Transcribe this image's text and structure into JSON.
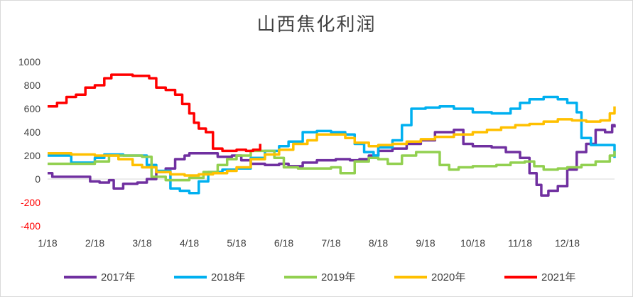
{
  "chart_data": {
    "type": "line",
    "title": "山西焦化利润",
    "xlabel": "",
    "ylabel": "",
    "ylim": [
      -400,
      1000
    ],
    "yticks": [
      -400,
      -200,
      0,
      200,
      400,
      600,
      800,
      1000
    ],
    "xlim": [
      0,
      12
    ],
    "x_tick_labels": [
      "1/18",
      "2/18",
      "3/18",
      "4/18",
      "5/18",
      "6/18",
      "7/18",
      "8/18",
      "9/18",
      "10/18",
      "11/18",
      "12/18"
    ],
    "grid": false,
    "legend_position": "bottom",
    "series": [
      {
        "name": "2017年",
        "color": "#7030a0",
        "points": [
          [
            0,
            50
          ],
          [
            0.1,
            20
          ],
          [
            0.4,
            20
          ],
          [
            0.7,
            20
          ],
          [
            0.9,
            -20
          ],
          [
            1.1,
            -30
          ],
          [
            1.3,
            -10
          ],
          [
            1.4,
            -80
          ],
          [
            1.6,
            -40
          ],
          [
            1.9,
            -30
          ],
          [
            2.1,
            0
          ],
          [
            2.3,
            60
          ],
          [
            2.5,
            90
          ],
          [
            2.7,
            170
          ],
          [
            2.9,
            200
          ],
          [
            3.0,
            220
          ],
          [
            3.4,
            220
          ],
          [
            3.6,
            190
          ],
          [
            3.9,
            200
          ],
          [
            4.1,
            160
          ],
          [
            4.3,
            130
          ],
          [
            4.6,
            120
          ],
          [
            4.9,
            130
          ],
          [
            5.1,
            110
          ],
          [
            5.4,
            140
          ],
          [
            5.7,
            160
          ],
          [
            6.1,
            170
          ],
          [
            6.4,
            160
          ],
          [
            6.6,
            170
          ],
          [
            6.8,
            200
          ],
          [
            7.0,
            240
          ],
          [
            7.3,
            260
          ],
          [
            7.6,
            300
          ],
          [
            7.9,
            330
          ],
          [
            8.2,
            400
          ],
          [
            8.6,
            420
          ],
          [
            8.8,
            300
          ],
          [
            9.0,
            280
          ],
          [
            9.4,
            270
          ],
          [
            9.7,
            230
          ],
          [
            10.0,
            180
          ],
          [
            10.2,
            50
          ],
          [
            10.35,
            -50
          ],
          [
            10.45,
            -140
          ],
          [
            10.6,
            -100
          ],
          [
            10.8,
            -60
          ],
          [
            11.0,
            80
          ],
          [
            11.2,
            230
          ],
          [
            11.4,
            300
          ],
          [
            11.6,
            420
          ],
          [
            11.8,
            400
          ],
          [
            11.95,
            460
          ],
          [
            12.0,
            440
          ]
        ]
      },
      {
        "name": "2018年",
        "color": "#00b0f0",
        "points": [
          [
            0,
            200
          ],
          [
            0.3,
            200
          ],
          [
            0.5,
            140
          ],
          [
            0.8,
            140
          ],
          [
            1.0,
            180
          ],
          [
            1.2,
            210
          ],
          [
            1.6,
            200
          ],
          [
            2.0,
            200
          ],
          [
            2.1,
            120
          ],
          [
            2.3,
            70
          ],
          [
            2.6,
            -80
          ],
          [
            2.8,
            -100
          ],
          [
            3.0,
            -120
          ],
          [
            3.2,
            -20
          ],
          [
            3.4,
            60
          ],
          [
            3.7,
            80
          ],
          [
            4.0,
            90
          ],
          [
            4.3,
            180
          ],
          [
            4.6,
            240
          ],
          [
            4.9,
            280
          ],
          [
            5.1,
            320
          ],
          [
            5.4,
            400
          ],
          [
            5.7,
            410
          ],
          [
            6.0,
            400
          ],
          [
            6.3,
            380
          ],
          [
            6.5,
            300
          ],
          [
            6.7,
            230
          ],
          [
            6.9,
            200
          ],
          [
            7.0,
            270
          ],
          [
            7.3,
            330
          ],
          [
            7.5,
            460
          ],
          [
            7.7,
            600
          ],
          [
            8.0,
            610
          ],
          [
            8.3,
            620
          ],
          [
            8.6,
            600
          ],
          [
            9.0,
            570
          ],
          [
            9.4,
            560
          ],
          [
            9.8,
            600
          ],
          [
            10.0,
            650
          ],
          [
            10.2,
            680
          ],
          [
            10.5,
            700
          ],
          [
            10.8,
            680
          ],
          [
            11.0,
            650
          ],
          [
            11.2,
            570
          ],
          [
            11.3,
            350
          ],
          [
            11.5,
            290
          ],
          [
            11.8,
            290
          ],
          [
            12.0,
            180
          ]
        ]
      },
      {
        "name": "2019年",
        "color": "#92d050",
        "points": [
          [
            0,
            130
          ],
          [
            0.5,
            130
          ],
          [
            1.0,
            150
          ],
          [
            1.3,
            200
          ],
          [
            1.6,
            200
          ],
          [
            2.0,
            190
          ],
          [
            2.2,
            20
          ],
          [
            2.5,
            -10
          ],
          [
            2.7,
            -10
          ],
          [
            3.0,
            10
          ],
          [
            3.3,
            60
          ],
          [
            3.6,
            120
          ],
          [
            3.8,
            170
          ],
          [
            4.0,
            200
          ],
          [
            4.3,
            240
          ],
          [
            4.6,
            240
          ],
          [
            4.8,
            180
          ],
          [
            5.0,
            100
          ],
          [
            5.3,
            90
          ],
          [
            5.6,
            90
          ],
          [
            6.0,
            100
          ],
          [
            6.2,
            50
          ],
          [
            6.5,
            150
          ],
          [
            6.8,
            180
          ],
          [
            7.0,
            170
          ],
          [
            7.2,
            130
          ],
          [
            7.5,
            200
          ],
          [
            7.8,
            230
          ],
          [
            8.1,
            230
          ],
          [
            8.3,
            120
          ],
          [
            8.5,
            80
          ],
          [
            8.7,
            100
          ],
          [
            9.0,
            110
          ],
          [
            9.5,
            120
          ],
          [
            9.8,
            140
          ],
          [
            10.1,
            150
          ],
          [
            10.3,
            110
          ],
          [
            10.5,
            80
          ],
          [
            10.8,
            90
          ],
          [
            11.0,
            100
          ],
          [
            11.3,
            120
          ],
          [
            11.6,
            150
          ],
          [
            11.9,
            200
          ],
          [
            12.0,
            240
          ]
        ]
      },
      {
        "name": "2020年",
        "color": "#ffc000",
        "points": [
          [
            0,
            220
          ],
          [
            0.5,
            210
          ],
          [
            1.0,
            200
          ],
          [
            1.5,
            170
          ],
          [
            1.8,
            120
          ],
          [
            2.0,
            100
          ],
          [
            2.3,
            60
          ],
          [
            2.6,
            40
          ],
          [
            2.9,
            30
          ],
          [
            3.2,
            40
          ],
          [
            3.5,
            50
          ],
          [
            3.8,
            70
          ],
          [
            4.0,
            100
          ],
          [
            4.3,
            170
          ],
          [
            4.6,
            210
          ],
          [
            4.9,
            250
          ],
          [
            5.2,
            300
          ],
          [
            5.5,
            330
          ],
          [
            5.7,
            380
          ],
          [
            6.0,
            380
          ],
          [
            6.3,
            350
          ],
          [
            6.5,
            310
          ],
          [
            6.8,
            280
          ],
          [
            7.0,
            290
          ],
          [
            7.3,
            300
          ],
          [
            7.6,
            320
          ],
          [
            7.9,
            340
          ],
          [
            8.2,
            360
          ],
          [
            8.6,
            380
          ],
          [
            9.0,
            400
          ],
          [
            9.3,
            420
          ],
          [
            9.6,
            440
          ],
          [
            9.9,
            460
          ],
          [
            10.2,
            470
          ],
          [
            10.5,
            490
          ],
          [
            10.8,
            510
          ],
          [
            11.1,
            500
          ],
          [
            11.4,
            490
          ],
          [
            11.7,
            500
          ],
          [
            11.9,
            560
          ],
          [
            12.0,
            620
          ]
        ]
      },
      {
        "name": "2021年",
        "color": "#ff0000",
        "points": [
          [
            0,
            620
          ],
          [
            0.2,
            650
          ],
          [
            0.4,
            700
          ],
          [
            0.6,
            720
          ],
          [
            0.8,
            780
          ],
          [
            1.0,
            800
          ],
          [
            1.2,
            860
          ],
          [
            1.35,
            890
          ],
          [
            1.6,
            890
          ],
          [
            1.8,
            880
          ],
          [
            2.0,
            880
          ],
          [
            2.15,
            860
          ],
          [
            2.3,
            780
          ],
          [
            2.5,
            760
          ],
          [
            2.7,
            720
          ],
          [
            2.85,
            640
          ],
          [
            3.0,
            560
          ],
          [
            3.1,
            480
          ],
          [
            3.2,
            430
          ],
          [
            3.35,
            400
          ],
          [
            3.5,
            260
          ],
          [
            3.7,
            240
          ],
          [
            4.0,
            250
          ],
          [
            4.2,
            240
          ],
          [
            4.35,
            250
          ],
          [
            4.5,
            300
          ]
        ]
      }
    ]
  }
}
